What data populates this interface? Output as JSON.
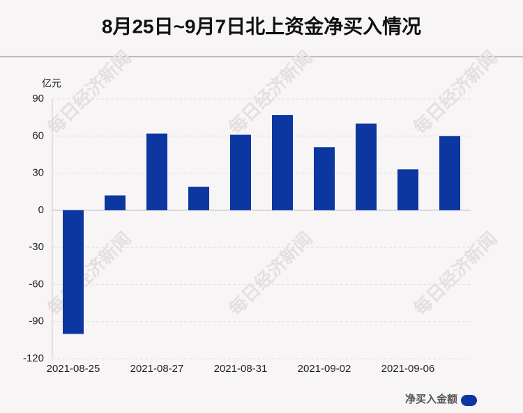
{
  "chart_data": {
    "type": "bar",
    "title": "8月25日~9月7日北上资金净买入情况",
    "y_unit": "亿元",
    "watermark": "每日经济新闻",
    "categories": [
      "2021-08-25",
      null,
      "2021-08-27",
      null,
      "2021-08-31",
      null,
      "2021-09-02",
      null,
      "2021-09-06",
      null
    ],
    "series": [
      {
        "name": "净买入金额",
        "color": "#0c36a0",
        "values": [
          -100,
          12,
          62,
          19,
          61,
          77,
          51,
          70,
          33,
          60
        ]
      }
    ],
    "ylim": [
      -120,
      90
    ],
    "yticks": [
      -120,
      -90,
      -60,
      -30,
      0,
      30,
      60,
      90
    ],
    "grid": true,
    "legend": "bottom-right"
  }
}
